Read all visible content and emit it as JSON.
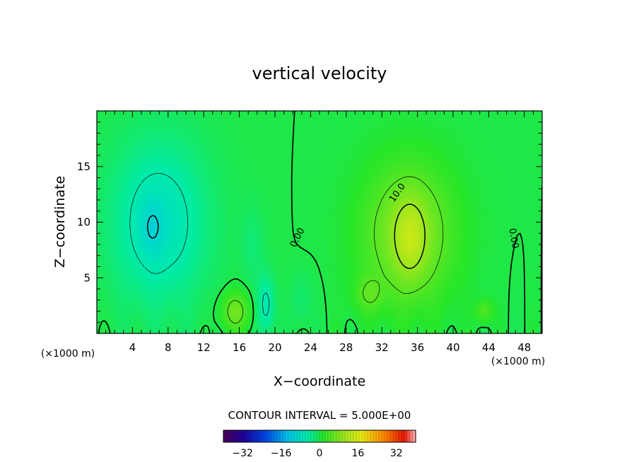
{
  "chart_data": {
    "type": "heatmap",
    "title": "vertical velocity",
    "xlabel": "X−coordinate",
    "ylabel": "Z−coordinate",
    "x_unit_left": "(×1000 m)",
    "x_unit_right": "(×1000 m)",
    "xlim": [
      0,
      50
    ],
    "ylim": [
      0,
      20
    ],
    "x_ticks": [
      4,
      8,
      12,
      16,
      20,
      24,
      28,
      32,
      36,
      40,
      44,
      48
    ],
    "y_ticks": [
      5,
      10,
      15
    ],
    "contour_interval_label": "CONTOUR INTERVAL = 5.000E+00",
    "contour_labels": [
      {
        "text": "10.0",
        "x": 34.0,
        "y": 12.5,
        "rot": -55
      },
      {
        "text": "0.00",
        "x": 22.8,
        "y": 8.5,
        "rot": -62
      },
      {
        "text": "0.00",
        "x": 46.5,
        "y": 8.5,
        "rot": 80
      }
    ],
    "colorbar": {
      "min": -40,
      "max": 40,
      "ticks": [
        -32,
        -16,
        0,
        16,
        32
      ],
      "tick_labels": [
        "−32",
        "−16",
        "0",
        "16",
        "32"
      ]
    },
    "features": [
      {
        "kind": "updraft",
        "center_x": 35,
        "center_z": 9,
        "peak": 14
      },
      {
        "kind": "downdraft",
        "center_x": 7,
        "center_z": 10,
        "peak": -11
      },
      {
        "kind": "updraft",
        "center_x": 15.5,
        "center_z": 2,
        "peak": 7
      },
      {
        "kind": "updraft",
        "center_x": 30.5,
        "center_z": 3.5,
        "peak": 6
      }
    ]
  }
}
